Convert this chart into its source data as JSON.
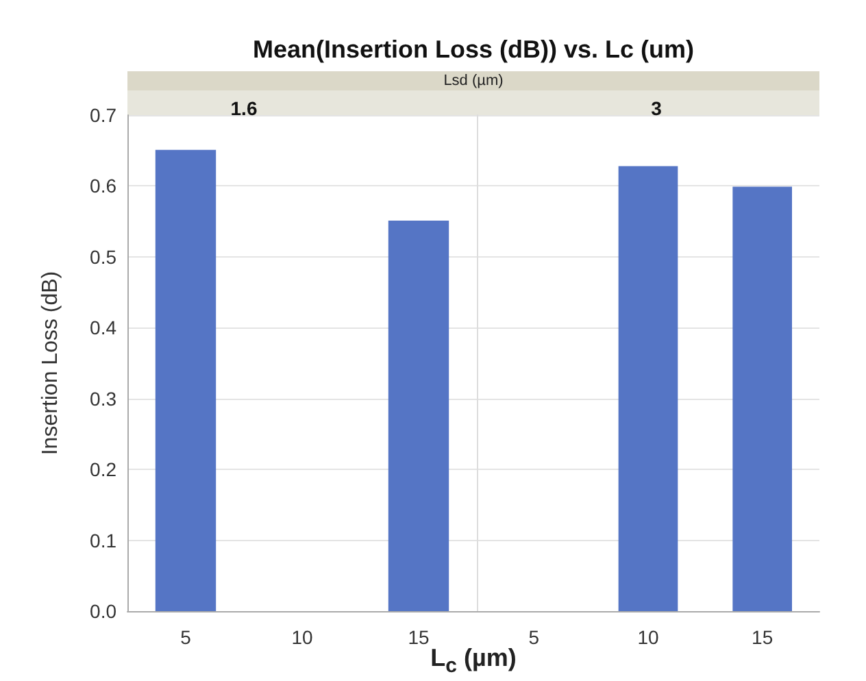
{
  "chart_data": [
    {
      "type": "bar",
      "title": "Mean(Insertion Loss (dB)) vs. Lc (um)",
      "subtitle": "1.6",
      "annotations": [
        "Lsd (µm)"
      ],
      "xlabel": "L$_{c}$ (µm)",
      "ylabel": "Insertion Loss (dB)",
      "categories": [
        "5",
        "10",
        "15"
      ],
      "values": [
        0.651,
        null,
        0.551
      ],
      "color": "#5575c5",
      "ylim": [
        0,
        0.7
      ],
      "yticks": [
        {
          "value": 0,
          "label": "0.0"
        },
        0.1,
        0.2,
        0.3,
        0.4,
        0.5,
        0.6,
        0.7
      ],
      "grid": "y"
    },
    {
      "type": "bar",
      "subtitle": "3",
      "categories": [
        "5",
        "10",
        "15"
      ],
      "values": [
        null,
        0.628,
        0.599
      ],
      "color": "#5575c5",
      "ylim": [
        0,
        0.7
      ],
      "yticks": [
        0,
        0.1,
        0.2,
        0.3,
        0.4,
        0.5,
        0.6,
        0.7
      ],
      "grid": "y",
      "tick_labels": "x"
    }
  ]
}
